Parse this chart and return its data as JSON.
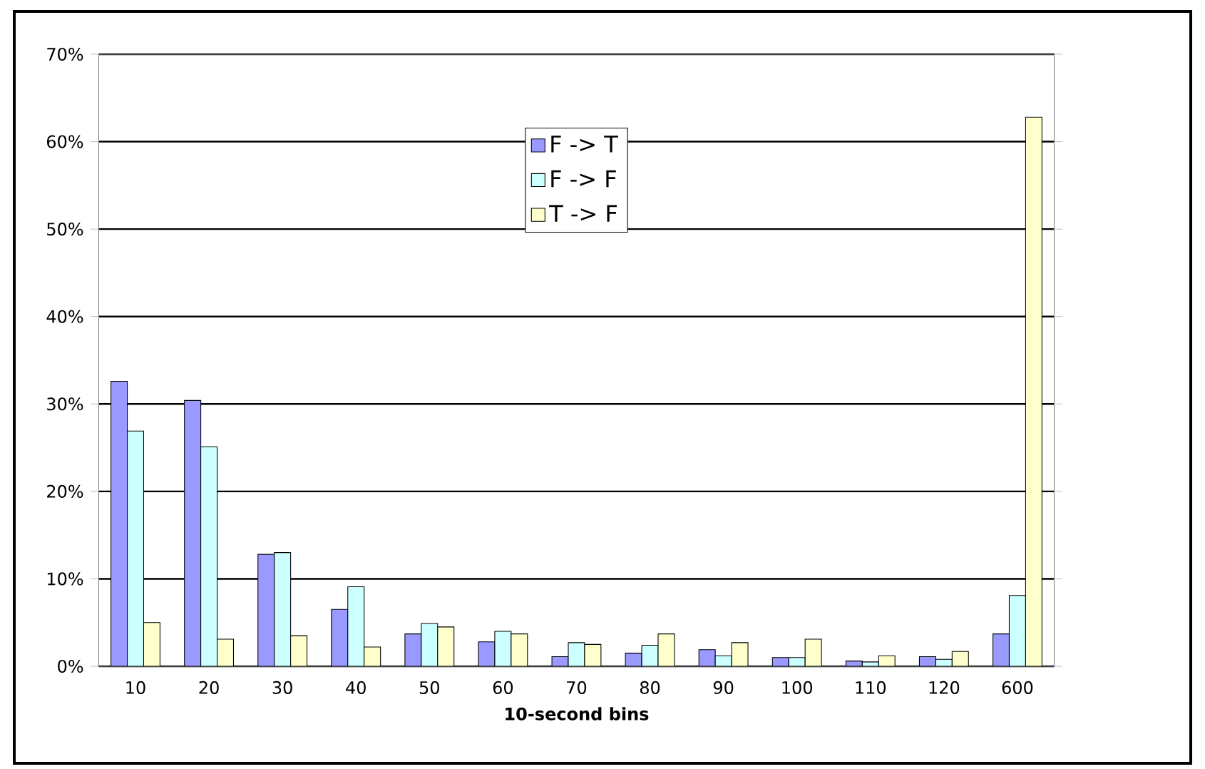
{
  "chart_data": {
    "type": "bar",
    "xlabel": "10-second bins",
    "categories": [
      "10",
      "20",
      "30",
      "40",
      "50",
      "60",
      "70",
      "80",
      "90",
      "100",
      "110",
      "120",
      "600"
    ],
    "series": [
      {
        "name": "F -> T",
        "color": "#9999ff",
        "values": [
          32.6,
          30.4,
          12.8,
          6.5,
          3.7,
          2.8,
          1.1,
          1.5,
          1.9,
          1.0,
          0.6,
          1.1,
          3.7
        ]
      },
      {
        "name": "F -> F",
        "color": "#ccffff",
        "values": [
          26.9,
          25.1,
          13.0,
          9.1,
          4.9,
          4.0,
          2.7,
          2.4,
          1.2,
          1.0,
          0.5,
          0.8,
          8.1
        ]
      },
      {
        "name": "T -> F",
        "color": "#ffffcc",
        "values": [
          5.0,
          3.1,
          3.5,
          2.2,
          4.5,
          3.7,
          2.5,
          3.7,
          2.7,
          3.1,
          1.2,
          1.7,
          62.8
        ]
      }
    ],
    "ylim": [
      0,
      70
    ],
    "yticks": [
      {
        "value": 0,
        "label": "0%"
      },
      {
        "value": 10,
        "label": "10%"
      },
      {
        "value": 20,
        "label": "20%"
      },
      {
        "value": 30,
        "label": "30%"
      },
      {
        "value": 40,
        "label": "40%"
      },
      {
        "value": 50,
        "label": "50%"
      },
      {
        "value": 60,
        "label": "60%"
      },
      {
        "value": 70,
        "label": "70%"
      }
    ],
    "grid": "y",
    "legend": "top"
  }
}
